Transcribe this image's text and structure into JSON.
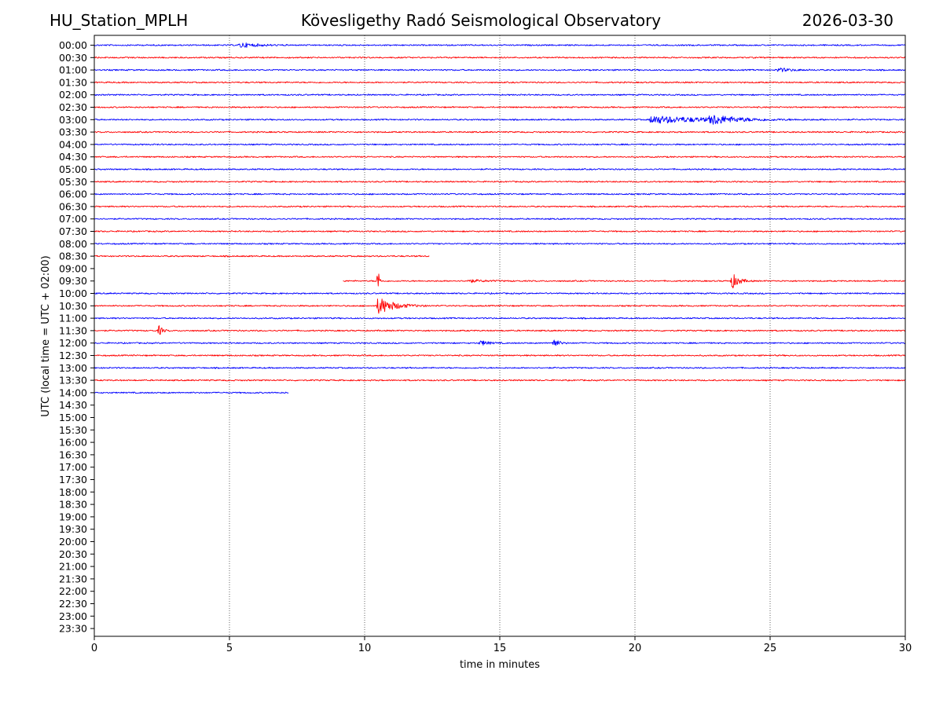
{
  "header": {
    "station": "HU_Station_MPLH",
    "observatory": "Kövesligethy Radó Seismological Observatory",
    "date": "2026-03-30"
  },
  "chart_data": {
    "type": "line",
    "title": "Kövesligethy Radó Seismological Observatory",
    "xlabel": "time in minutes",
    "ylabel": "UTC (local time = UTC + 02:00)",
    "xlim": [
      0,
      30
    ],
    "x_ticks": [
      0,
      5,
      10,
      15,
      20,
      25,
      30
    ],
    "grid": "vertical dotted lines at x ticks",
    "row_labels": [
      "00:00",
      "00:30",
      "01:00",
      "01:30",
      "02:00",
      "02:30",
      "03:00",
      "03:30",
      "04:00",
      "04:30",
      "05:00",
      "05:30",
      "06:00",
      "06:30",
      "07:00",
      "07:30",
      "08:00",
      "08:30",
      "09:00",
      "09:30",
      "10:00",
      "10:30",
      "11:00",
      "11:30",
      "12:00",
      "12:30",
      "13:00",
      "13:30",
      "14:00",
      "14:30",
      "15:00",
      "15:30",
      "16:00",
      "16:30",
      "17:00",
      "17:30",
      "18:00",
      "18:30",
      "19:00",
      "19:30",
      "20:00",
      "20:30",
      "21:00",
      "21:30",
      "22:00",
      "22:30",
      "23:00",
      "23:30"
    ],
    "colors": {
      "even_rows": "#0000ff",
      "odd_rows": "#ff0000",
      "grid": "#000000"
    },
    "series": [
      {
        "name": "00:00",
        "start_min": 0,
        "end_min": 30,
        "events": [
          {
            "t": 5.4,
            "amp": 0.45,
            "dur": 1.2
          }
        ]
      },
      {
        "name": "00:30",
        "start_min": 0,
        "end_min": 30,
        "events": []
      },
      {
        "name": "01:00",
        "start_min": 0,
        "end_min": 30,
        "events": [
          {
            "t": 25.3,
            "amp": 0.35,
            "dur": 1.0
          }
        ]
      },
      {
        "name": "01:30",
        "start_min": 0,
        "end_min": 30,
        "events": []
      },
      {
        "name": "02:00",
        "start_min": 0,
        "end_min": 30,
        "events": []
      },
      {
        "name": "02:30",
        "start_min": 0,
        "end_min": 30,
        "events": []
      },
      {
        "name": "03:00",
        "start_min": 0,
        "end_min": 30,
        "events": [
          {
            "t": 20.6,
            "amp": 0.7,
            "dur": 4.5
          },
          {
            "t": 22.8,
            "amp": 0.85,
            "dur": 1.5
          }
        ]
      },
      {
        "name": "03:30",
        "start_min": 0,
        "end_min": 30,
        "events": []
      },
      {
        "name": "04:00",
        "start_min": 0,
        "end_min": 30,
        "events": []
      },
      {
        "name": "04:30",
        "start_min": 0,
        "end_min": 30,
        "events": []
      },
      {
        "name": "05:00",
        "start_min": 0,
        "end_min": 30,
        "events": []
      },
      {
        "name": "05:30",
        "start_min": 0,
        "end_min": 30,
        "events": []
      },
      {
        "name": "06:00",
        "start_min": 0,
        "end_min": 30,
        "events": []
      },
      {
        "name": "06:30",
        "start_min": 0,
        "end_min": 30,
        "events": []
      },
      {
        "name": "07:00",
        "start_min": 0,
        "end_min": 30,
        "events": []
      },
      {
        "name": "07:30",
        "start_min": 0,
        "end_min": 30,
        "events": []
      },
      {
        "name": "08:00",
        "start_min": 0,
        "end_min": 30,
        "events": []
      },
      {
        "name": "08:30",
        "start_min": 0,
        "end_min": 12.4,
        "events": []
      },
      {
        "name": "09:00",
        "start_min": null,
        "end_min": null,
        "events": []
      },
      {
        "name": "09:30",
        "start_min": 9.2,
        "end_min": 30,
        "events": [
          {
            "t": 10.5,
            "amp": 2.5,
            "dur": 0.1
          },
          {
            "t": 13.8,
            "amp": 0.25,
            "dur": 1.2
          },
          {
            "t": 23.6,
            "amp": 1.4,
            "dur": 0.5
          }
        ]
      },
      {
        "name": "10:00",
        "start_min": 0,
        "end_min": 30,
        "events": []
      },
      {
        "name": "10:30",
        "start_min": 0,
        "end_min": 30,
        "events": [
          {
            "t": 10.5,
            "amp": 1.6,
            "dur": 1.2
          }
        ]
      },
      {
        "name": "11:00",
        "start_min": 0,
        "end_min": 30,
        "events": []
      },
      {
        "name": "11:30",
        "start_min": 0,
        "end_min": 30,
        "events": [
          {
            "t": 2.4,
            "amp": 0.9,
            "dur": 0.25
          }
        ]
      },
      {
        "name": "12:00",
        "start_min": 0,
        "end_min": 30,
        "events": [
          {
            "t": 14.3,
            "amp": 0.45,
            "dur": 0.6
          },
          {
            "t": 17.0,
            "amp": 0.9,
            "dur": 0.35
          }
        ]
      },
      {
        "name": "12:30",
        "start_min": 0,
        "end_min": 30,
        "events": []
      },
      {
        "name": "13:00",
        "start_min": 0,
        "end_min": 30,
        "events": []
      },
      {
        "name": "13:30",
        "start_min": 0,
        "end_min": 30,
        "events": []
      },
      {
        "name": "14:00",
        "start_min": 0,
        "end_min": 7.2,
        "events": []
      }
    ]
  }
}
